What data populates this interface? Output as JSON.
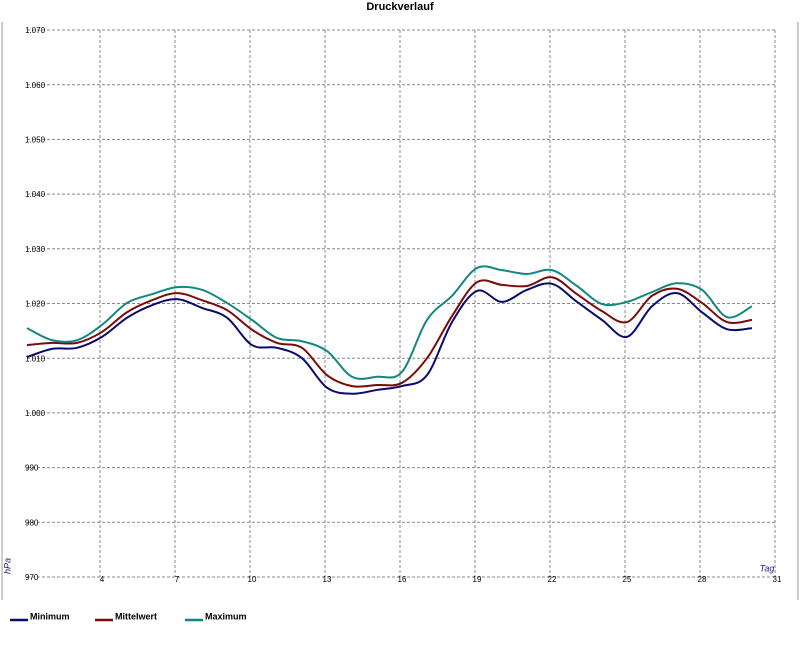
{
  "chart_data": {
    "type": "line",
    "title": "Druckverlauf",
    "x_label": "Tag",
    "y_label": "hPa",
    "x": [
      1,
      2,
      3,
      4,
      5,
      6,
      7,
      8,
      9,
      10,
      11,
      12,
      13,
      14,
      15,
      16,
      17,
      18,
      19,
      20,
      21,
      22,
      23,
      24,
      25,
      26,
      27,
      28,
      29,
      30
    ],
    "xlim": [
      1,
      31
    ],
    "xticks": [
      4,
      7,
      10,
      13,
      16,
      19,
      22,
      25,
      28,
      31
    ],
    "ylim": [
      970,
      1070
    ],
    "yticks": [
      970,
      980,
      990,
      {
        "value": 1000,
        "label": "1.000"
      },
      {
        "value": 1010,
        "label": "1.010"
      },
      {
        "value": 1020,
        "label": "1.020"
      },
      {
        "value": 1030,
        "label": "1.030"
      },
      {
        "value": 1040,
        "label": "1.040"
      },
      {
        "value": 1050,
        "label": "1.050"
      },
      {
        "value": 1060,
        "label": "1.060"
      },
      {
        "value": 1070,
        "label": "1.070"
      }
    ],
    "grid": true,
    "series": [
      {
        "name": "Minimum",
        "color": "#0a0a6e",
        "values": [
          1010.2,
          1011.7,
          1011.9,
          1013.9,
          1017.4,
          1019.7,
          1020.8,
          1019.2,
          1017.4,
          1012.4,
          1011.9,
          1010.0,
          1004.6,
          1003.5,
          1004.2,
          1004.9,
          1006.9,
          1016.6,
          1022.3,
          1020.3,
          1022.5,
          1023.6,
          1020.3,
          1017.0,
          1013.9,
          1019.5,
          1021.9,
          1018.4,
          1015.3,
          1015.5
        ]
      },
      {
        "name": "Mittelwert",
        "color": "#7a0a0a",
        "values": [
          1012.4,
          1012.8,
          1012.8,
          1014.8,
          1018.4,
          1020.6,
          1021.9,
          1020.6,
          1018.8,
          1015.2,
          1012.8,
          1011.9,
          1006.9,
          1004.9,
          1005.1,
          1005.5,
          1010.0,
          1017.7,
          1023.9,
          1023.4,
          1023.2,
          1024.8,
          1021.7,
          1018.6,
          1016.6,
          1021.4,
          1022.7,
          1020.1,
          1016.6,
          1017.0
        ]
      },
      {
        "name": "Maximum",
        "color": "#12877f",
        "values": [
          1015.5,
          1013.3,
          1013.3,
          1016.1,
          1020.1,
          1021.7,
          1023.0,
          1022.5,
          1020.1,
          1017.0,
          1013.7,
          1013.1,
          1011.3,
          1006.6,
          1006.6,
          1007.5,
          1017.0,
          1021.4,
          1026.5,
          1026.1,
          1025.4,
          1026.1,
          1023.2,
          1019.9,
          1020.3,
          1022.1,
          1023.7,
          1022.5,
          1017.5,
          1019.5
        ]
      }
    ]
  }
}
